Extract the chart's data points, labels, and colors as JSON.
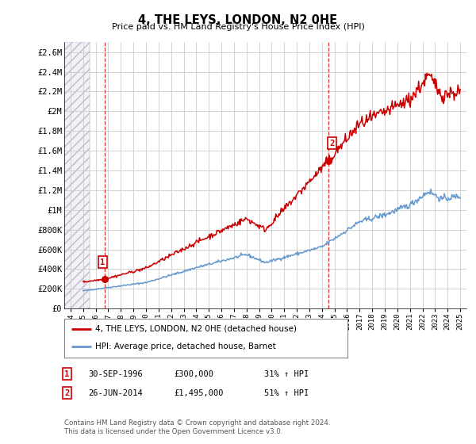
{
  "title": "4, THE LEYS, LONDON, N2 0HE",
  "subtitle": "Price paid vs. HM Land Registry's House Price Index (HPI)",
  "legend_line1": "4, THE LEYS, LONDON, N2 0HE (detached house)",
  "legend_line2": "HPI: Average price, detached house, Barnet",
  "footer": "Contains HM Land Registry data © Crown copyright and database right 2024.\nThis data is licensed under the Open Government Licence v3.0.",
  "sale1_label": "1",
  "sale1_date": "30-SEP-1996",
  "sale1_price": "£300,000",
  "sale1_hpi": "31% ↑ HPI",
  "sale1_year": 1996.75,
  "sale1_value": 300000,
  "sale2_label": "2",
  "sale2_date": "26-JUN-2014",
  "sale2_price": "£1,495,000",
  "sale2_hpi": "51% ↑ HPI",
  "sale2_year": 2014.5,
  "sale2_value": 1495000,
  "red_color": "#cc0000",
  "blue_color": "#6699cc",
  "bg_color": "#ffffff",
  "grid_color": "#cccccc",
  "ylim": [
    0,
    2700000
  ],
  "yticks": [
    0,
    200000,
    400000,
    600000,
    800000,
    1000000,
    1200000,
    1400000,
    1600000,
    1800000,
    2000000,
    2200000,
    2400000,
    2600000
  ],
  "ytick_labels": [
    "£0",
    "£200K",
    "£400K",
    "£600K",
    "£800K",
    "£1M",
    "£1.2M",
    "£1.4M",
    "£1.6M",
    "£1.8M",
    "£2M",
    "£2.2M",
    "£2.4M",
    "£2.6M"
  ],
  "xlim": [
    1993.5,
    2025.5
  ],
  "hpi_anchors": [
    [
      1995,
      180000
    ],
    [
      2000,
      264000
    ],
    [
      2004,
      415000
    ],
    [
      2008,
      548000
    ],
    [
      2009.5,
      466000
    ],
    [
      2014,
      625000
    ],
    [
      2017,
      880000
    ],
    [
      2019,
      950000
    ],
    [
      2021,
      1050000
    ],
    [
      2022.5,
      1190000
    ],
    [
      2023.5,
      1110000
    ],
    [
      2025,
      1140000
    ]
  ],
  "pp_anchors": [
    [
      1995,
      270000
    ],
    [
      1996.75,
      300000
    ],
    [
      2000,
      410000
    ],
    [
      2004,
      670000
    ],
    [
      2008,
      910000
    ],
    [
      2009.5,
      800000
    ],
    [
      2014.5,
      1495000
    ],
    [
      2017,
      1870000
    ],
    [
      2019,
      1990000
    ],
    [
      2021,
      2120000
    ],
    [
      2022.5,
      2360000
    ],
    [
      2023.5,
      2170000
    ],
    [
      2025,
      2200000
    ]
  ]
}
